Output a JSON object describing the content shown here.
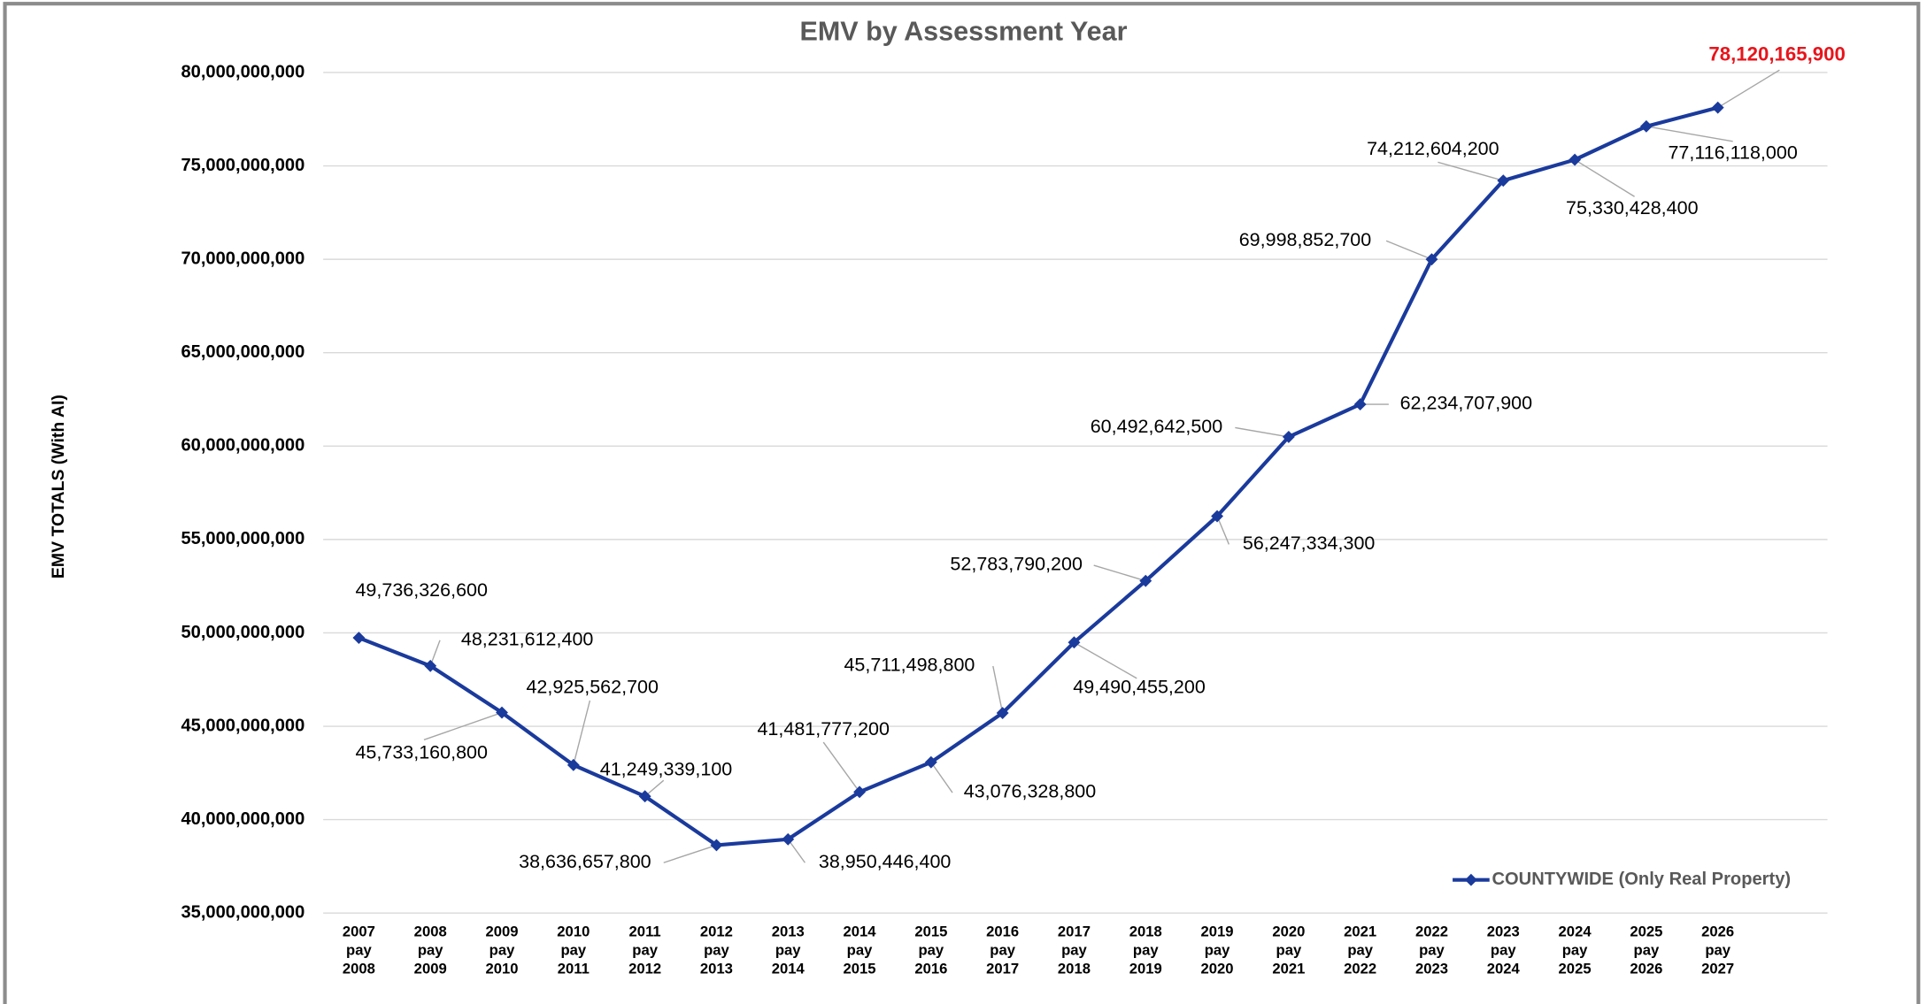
{
  "chart_data": {
    "type": "line",
    "title": "EMV by Assessment Year",
    "y_label": "EMV TOTALS (With AI)",
    "categories": [
      "2007 pay 2008",
      "2008 pay 2009",
      "2009 pay 2010",
      "2010 pay 2011",
      "2011 pay 2012",
      "2012 pay 2013",
      "2013 pay 2014",
      "2014 pay 2015",
      "2015 pay 2016",
      "2016 pay 2017",
      "2017 pay 2018",
      "2018 pay 2019",
      "2019 pay 2020",
      "2020 pay 2021",
      "2021 pay 2022",
      "2022 pay 2023",
      "2023 pay 2024",
      "2024 pay 2025",
      "2025 pay 2026",
      "2026 pay 2027"
    ],
    "series": [
      {
        "name": "COUNTYWIDE (Only Real Property)",
        "color": "#1a3a9c",
        "values": [
          49736326600,
          48231612400,
          45733160800,
          42925562700,
          41249339100,
          38636657800,
          38950446400,
          41481777200,
          43076328800,
          45711498800,
          49490455200,
          52783790200,
          56247334300,
          60492642500,
          62234707900,
          69998852700,
          74212604200,
          75330428400,
          77116118000,
          78120165900
        ],
        "value_labels": [
          "49,736,326,600",
          "48,231,612,400",
          "45,733,160,800",
          "42,925,562,700",
          "41,249,339,100",
          "38,636,657,800",
          "38,950,446,400",
          "41,481,777,200",
          "43,076,328,800",
          "45,711,498,800",
          "49,490,455,200",
          "52,783,790,200",
          "56,247,334,300",
          "60,492,642,500",
          "62,234,707,900",
          "69,998,852,700",
          "74,212,604,200",
          "75,330,428,400",
          "77,116,118,000",
          "78,120,165,900"
        ],
        "highlight_color": "#e8141b"
      }
    ],
    "ylim": [
      35000000000,
      80000000000
    ],
    "yticks": [
      {
        "value": 35000000000,
        "label": "35,000,000,000"
      },
      {
        "value": 40000000000,
        "label": "40,000,000,000"
      },
      {
        "value": 45000000000,
        "label": "45,000,000,000"
      },
      {
        "value": 50000000000,
        "label": "50,000,000,000"
      },
      {
        "value": 55000000000,
        "label": "55,000,000,000"
      },
      {
        "value": 60000000000,
        "label": "60,000,000,000"
      },
      {
        "value": 65000000000,
        "label": "65,000,000,000"
      },
      {
        "value": 70000000000,
        "label": "70,000,000,000"
      },
      {
        "value": 75000000000,
        "label": "75,000,000,000"
      },
      {
        "value": 80000000000,
        "label": "80,000,000,000"
      }
    ],
    "grid": true,
    "legend": "lower right"
  }
}
